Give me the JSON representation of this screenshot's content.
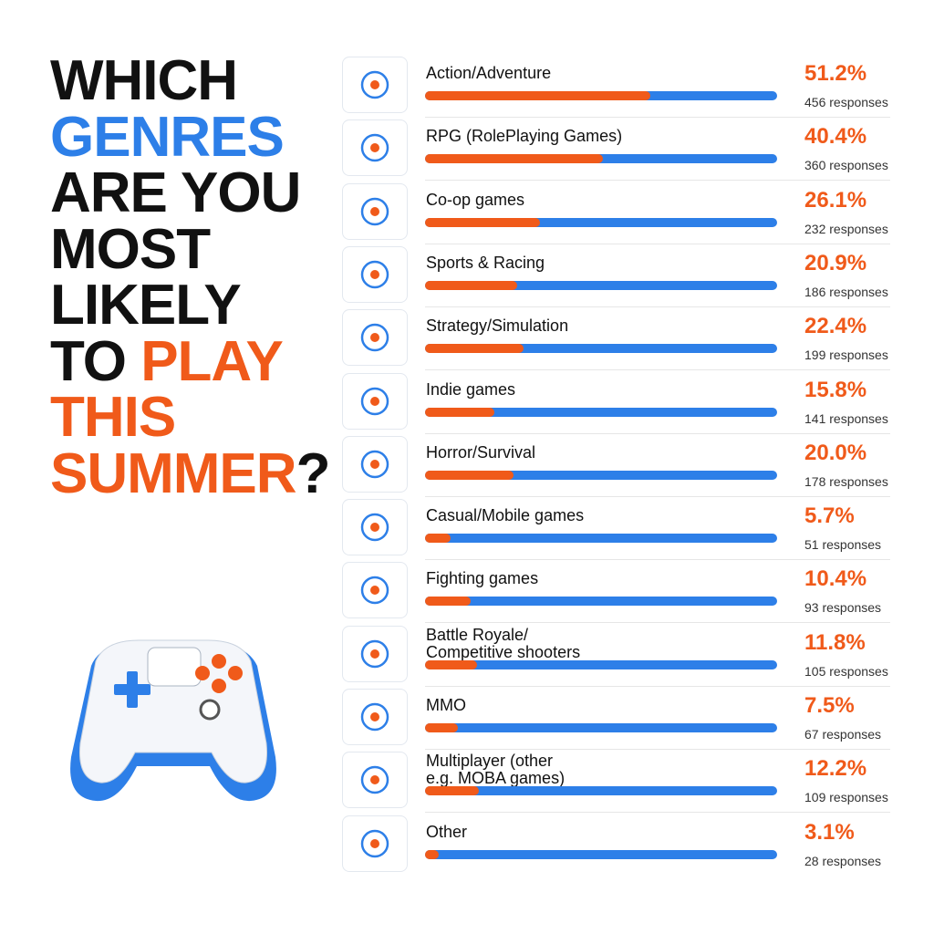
{
  "chart_data": {
    "type": "bar",
    "title_lines": [
      [
        {
          "text": "WHICH",
          "color": "#111111"
        }
      ],
      [
        {
          "text": "GENRES",
          "color": "#2d7fe8"
        }
      ],
      [
        {
          "text": "ARE YOU",
          "color": "#111111"
        }
      ],
      [
        {
          "text": "MOST",
          "color": "#111111"
        }
      ],
      [
        {
          "text": "LIKELY",
          "color": "#111111"
        }
      ],
      [
        {
          "text": "TO ",
          "color": "#111111"
        },
        {
          "text": "PLAY",
          "color": "#f05a1a"
        }
      ],
      [
        {
          "text": "THIS",
          "color": "#f05a1a"
        }
      ],
      [
        {
          "text": "SUMMER",
          "color": "#f05a1a"
        },
        {
          "text": "?",
          "color": "#111111"
        }
      ]
    ],
    "categories": [
      "Action/Adventure",
      "RPG (RolePlaying Games)",
      "Co-op games",
      "Sports & Racing",
      "Strategy/Simulation",
      "Indie games",
      "Horror/Survival",
      "Casual/Mobile games",
      "Fighting games",
      "Battle Royale/\nCompetitive shooters",
      "MMO",
      "Multiplayer (other\ne.g. MOBA games)",
      "Other"
    ],
    "values": [
      51.2,
      40.4,
      26.1,
      20.9,
      22.4,
      15.8,
      20.0,
      5.7,
      10.4,
      11.8,
      7.5,
      12.2,
      3.1
    ],
    "value_labels": [
      "51.2%",
      "40.4%",
      "26.1%",
      "20.9%",
      "22.4%",
      "15.8%",
      "20.0%",
      "5.7%",
      "10.4%",
      "11.8%",
      "7.5%",
      "12.2%",
      "3.1%"
    ],
    "responses": [
      "456 responses",
      "360 responses",
      "232 responses",
      "186 responses",
      "199 responses",
      "141 responses",
      "178 responses",
      "51 responses",
      "93 responses",
      "105 responses",
      "67 responses",
      "109 responses",
      "28 responses"
    ],
    "color": "#f05a1a",
    "track_color": "#2d7fe8",
    "xlim": [
      0,
      80
    ]
  }
}
